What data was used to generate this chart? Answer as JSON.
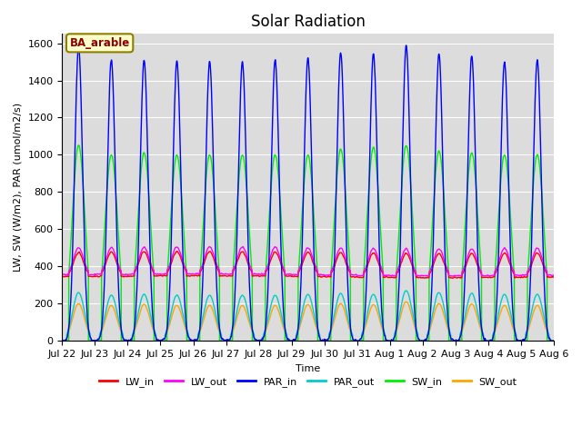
{
  "title": "Solar Radiation",
  "xlabel": "Time",
  "ylabel": "LW, SW (W/m2), PAR (umol/m2/s)",
  "annotation": "BA_arable",
  "annotation_color": "#8B0000",
  "annotation_bg": "#FFFFCC",
  "annotation_border": "#8B8000",
  "bg_color": "#DCDCDC",
  "ylim": [
    0,
    1650
  ],
  "n_days": 15,
  "series": {
    "LW_in": {
      "color": "#FF0000",
      "lw": 1.0
    },
    "LW_out": {
      "color": "#FF00FF",
      "lw": 1.0
    },
    "PAR_in": {
      "color": "#0000FF",
      "lw": 1.0
    },
    "PAR_out": {
      "color": "#00CCCC",
      "lw": 1.0
    },
    "SW_in": {
      "color": "#00EE00",
      "lw": 1.0
    },
    "SW_out": {
      "color": "#FFA500",
      "lw": 1.0
    }
  },
  "xtick_labels": [
    "Jul 22",
    "Jul 23",
    "Jul 24",
    "Jul 25",
    "Jul 26",
    "Jul 27",
    "Jul 28",
    "Jul 29",
    "Jul 30",
    "Jul 31",
    "Aug 1",
    "Aug 2",
    "Aug 3",
    "Aug 4",
    "Aug 5",
    "Aug 6"
  ],
  "yticks": [
    0,
    200,
    400,
    600,
    800,
    1000,
    1200,
    1400,
    1600
  ],
  "legend_ncol": 6,
  "title_fontsize": 12,
  "axis_fontsize": 8,
  "tick_fontsize": 8
}
